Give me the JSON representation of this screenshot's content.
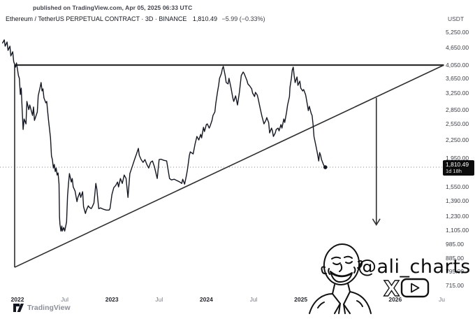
{
  "header": {
    "published_line": "published on TradingView.com, Apr 05, 2025 06:33 UTC",
    "symbol_line": "Ethereum / TetherUS PERPETUAL CONTRACT · 3D · BINANCE",
    "last_price": "1,810.49",
    "change": "−5.99 (−0.33%)"
  },
  "price_scale": {
    "unit": "USDT",
    "badge": {
      "price": "1,810.49",
      "countdown": "1d 18h"
    }
  },
  "watermark": {
    "handle": "@ali_charts",
    "icons": [
      "portrait-sketch",
      "x-logo",
      "youtube-logo"
    ]
  },
  "footer": {
    "logo_text": "TradingView"
  },
  "chart_data": {
    "type": "line",
    "title": "Ethereum / TetherUS PERPETUAL CONTRACT",
    "interval": "3D",
    "exchange": "BINANCE",
    "quote_currency": "USDT",
    "last_price": 1810.49,
    "change": -5.99,
    "change_pct": -0.33,
    "line_color": "#131722",
    "y_axis": {
      "scale": "log",
      "side": "right",
      "ticks": [
        {
          "v": 5250,
          "label": "5,250.00"
        },
        {
          "v": 4650,
          "label": "4,650.00"
        },
        {
          "v": 4050,
          "label": "4,050.00"
        },
        {
          "v": 3650,
          "label": "3,650.00"
        },
        {
          "v": 3250,
          "label": "3,250.00"
        },
        {
          "v": 2850,
          "label": "2,850.00"
        },
        {
          "v": 2550,
          "label": "2,550.00"
        },
        {
          "v": 2250,
          "label": "2,250.00"
        },
        {
          "v": 1950,
          "label": "1,950.00"
        },
        {
          "v": 1550,
          "label": "1,550.00"
        },
        {
          "v": 1390,
          "label": "1,390.00"
        },
        {
          "v": 1230,
          "label": "1,230.00"
        },
        {
          "v": 1105,
          "label": "1,105.00"
        },
        {
          "v": 985,
          "label": "985.00"
        },
        {
          "v": 885,
          "label": "885.00"
        },
        {
          "v": 795,
          "label": "795.00"
        },
        {
          "v": 715,
          "label": "715.00"
        }
      ]
    },
    "x_axis": {
      "ticks": [
        {
          "t": 2022.0,
          "label": "2022",
          "style": "year"
        },
        {
          "t": 2022.5,
          "label": "Jul",
          "style": "minor"
        },
        {
          "t": 2023.0,
          "label": "2023",
          "style": "year"
        },
        {
          "t": 2023.5,
          "label": "Jul",
          "style": "minor"
        },
        {
          "t": 2024.0,
          "label": "2024",
          "style": "year"
        },
        {
          "t": 2024.5,
          "label": "Jul",
          "style": "minor"
        },
        {
          "t": 2025.0,
          "label": "2025",
          "style": "year"
        },
        {
          "t": 2026.0,
          "label": "2026",
          "style": "year"
        },
        {
          "t": 2026.5,
          "label": "Jul",
          "style": "minor"
        }
      ]
    },
    "annotations": {
      "triangle": {
        "resistance_price": 4050,
        "start_t": 2021.97,
        "apex_t": 2026.515,
        "support_start_price": 823
      },
      "down_arrow": {
        "t": 2025.8,
        "from_price": 3130,
        "to_price": 1150
      },
      "current_price_line": 1810.49,
      "last_point_marker": [
        2025.26,
        1810.49
      ]
    },
    "series": [
      {
        "name": "ETHUSDT.P close",
        "points": [
          [
            2021.84,
            4805
          ],
          [
            2021.86,
            4939
          ],
          [
            2021.87,
            4700
          ],
          [
            2021.89,
            4858
          ],
          [
            2021.9,
            4547
          ],
          [
            2021.92,
            4700
          ],
          [
            2021.93,
            4351
          ],
          [
            2021.95,
            4498
          ],
          [
            2021.96,
            4163
          ],
          [
            2021.98,
            3984
          ],
          [
            2021.99,
            4118
          ],
          [
            2022.01,
            3728
          ],
          [
            2022.02,
            3647
          ],
          [
            2022.03,
            3212
          ],
          [
            2022.04,
            3376
          ],
          [
            2022.05,
            2829
          ],
          [
            2022.06,
            2438
          ],
          [
            2022.07,
            2648
          ],
          [
            2022.09,
            2547
          ],
          [
            2022.1,
            3040
          ],
          [
            2022.12,
            2850
          ],
          [
            2022.13,
            2957
          ],
          [
            2022.16,
            2722
          ],
          [
            2022.17,
            2909
          ],
          [
            2022.18,
            2619
          ],
          [
            2022.21,
            2798
          ],
          [
            2022.22,
            3177
          ],
          [
            2022.24,
            3395
          ],
          [
            2022.25,
            3528
          ],
          [
            2022.26,
            3302
          ],
          [
            2022.27,
            3357
          ],
          [
            2022.28,
            3125
          ],
          [
            2022.3,
            3007
          ],
          [
            2022.31,
            3040
          ],
          [
            2022.32,
            2798
          ],
          [
            2022.33,
            2605
          ],
          [
            2022.35,
            2281
          ],
          [
            2022.36,
            1977
          ],
          [
            2022.37,
            1923
          ],
          [
            2022.38,
            1799
          ],
          [
            2022.39,
            1850
          ],
          [
            2022.4,
            1750
          ],
          [
            2022.41,
            1799
          ],
          [
            2022.42,
            1703
          ],
          [
            2022.43,
            1731
          ],
          [
            2022.44,
            1585
          ],
          [
            2022.445,
            1223
          ],
          [
            2022.45,
            1157
          ],
          [
            2022.46,
            1095
          ],
          [
            2022.47,
            1139
          ],
          [
            2022.475,
            1095
          ],
          [
            2022.49,
            1126
          ],
          [
            2022.5,
            1095
          ],
          [
            2022.52,
            1176
          ],
          [
            2022.53,
            1443
          ],
          [
            2022.54,
            1585
          ],
          [
            2022.55,
            1722
          ],
          [
            2022.57,
            1611
          ],
          [
            2022.58,
            1656
          ],
          [
            2022.59,
            1550
          ],
          [
            2022.61,
            1500
          ],
          [
            2022.63,
            1381
          ],
          [
            2022.64,
            1427
          ],
          [
            2022.66,
            1483
          ],
          [
            2022.67,
            1427
          ],
          [
            2022.69,
            1492
          ],
          [
            2022.7,
            1328
          ],
          [
            2022.72,
            1257
          ],
          [
            2022.73,
            1292
          ],
          [
            2022.75,
            1336
          ],
          [
            2022.76,
            1321
          ],
          [
            2022.78,
            1307
          ],
          [
            2022.79,
            1321
          ],
          [
            2022.81,
            1366
          ],
          [
            2022.82,
            1475
          ],
          [
            2022.83,
            1594
          ],
          [
            2022.84,
            1525
          ],
          [
            2022.86,
            1307
          ],
          [
            2022.88,
            1314
          ],
          [
            2022.91,
            1300
          ],
          [
            2022.94,
            1292
          ],
          [
            2022.97,
            1292
          ],
          [
            2022.98,
            1307
          ],
          [
            2023.0,
            1459
          ],
          [
            2023.02,
            1542
          ],
          [
            2023.04,
            1567
          ],
          [
            2023.06,
            1611
          ],
          [
            2023.07,
            1550
          ],
          [
            2023.09,
            1656
          ],
          [
            2023.11,
            1594
          ],
          [
            2023.13,
            1703
          ],
          [
            2023.15,
            1656
          ],
          [
            2023.17,
            1427
          ],
          [
            2023.19,
            1722
          ],
          [
            2023.21,
            1799
          ],
          [
            2023.24,
            1923
          ],
          [
            2023.26,
            2010
          ],
          [
            2023.28,
            2100
          ],
          [
            2023.29,
            1988
          ],
          [
            2023.31,
            1923
          ],
          [
            2023.33,
            1881
          ],
          [
            2023.35,
            1923
          ],
          [
            2023.37,
            1850
          ],
          [
            2023.39,
            1799
          ],
          [
            2023.41,
            1881
          ],
          [
            2023.43,
            1902
          ],
          [
            2023.45,
            1820
          ],
          [
            2023.48,
            1656
          ],
          [
            2023.5,
            1923
          ],
          [
            2023.52,
            1928
          ],
          [
            2023.55,
            1912
          ],
          [
            2023.58,
            1902
          ],
          [
            2023.61,
            1656
          ],
          [
            2023.63,
            1638
          ],
          [
            2023.66,
            1647
          ],
          [
            2023.69,
            1629
          ],
          [
            2023.72,
            1611
          ],
          [
            2023.74,
            1594
          ],
          [
            2023.75,
            1647
          ],
          [
            2023.77,
            1585
          ],
          [
            2023.79,
            1703
          ],
          [
            2023.8,
            1780
          ],
          [
            2023.82,
            1988
          ],
          [
            2023.83,
            2043
          ],
          [
            2023.86,
            2010
          ],
          [
            2023.88,
            2171
          ],
          [
            2023.9,
            2307
          ],
          [
            2023.92,
            2244
          ],
          [
            2023.94,
            2345
          ],
          [
            2023.95,
            2281
          ],
          [
            2023.97,
            2479
          ],
          [
            2023.98,
            2398
          ],
          [
            2024.0,
            2533
          ],
          [
            2024.01,
            2547
          ],
          [
            2024.03,
            2465
          ],
          [
            2024.04,
            2506
          ],
          [
            2024.06,
            2619
          ],
          [
            2024.07,
            2722
          ],
          [
            2024.09,
            2798
          ],
          [
            2024.1,
            2990
          ],
          [
            2024.12,
            3302
          ],
          [
            2024.13,
            3451
          ],
          [
            2024.14,
            3647
          ],
          [
            2024.16,
            3791
          ],
          [
            2024.17,
            3940
          ],
          [
            2024.18,
            4005
          ],
          [
            2024.2,
            3728
          ],
          [
            2024.21,
            3528
          ],
          [
            2024.23,
            3490
          ],
          [
            2024.24,
            3647
          ],
          [
            2024.26,
            3395
          ],
          [
            2024.28,
            3125
          ],
          [
            2024.29,
            3040
          ],
          [
            2024.31,
            3177
          ],
          [
            2024.33,
            2957
          ],
          [
            2024.35,
            3266
          ],
          [
            2024.37,
            3728
          ],
          [
            2024.39,
            3833
          ],
          [
            2024.4,
            3791
          ],
          [
            2024.43,
            3587
          ],
          [
            2024.44,
            3490
          ],
          [
            2024.46,
            3432
          ],
          [
            2024.48,
            3357
          ],
          [
            2024.49,
            3248
          ],
          [
            2024.51,
            3160
          ],
          [
            2024.52,
            3266
          ],
          [
            2024.54,
            3195
          ],
          [
            2024.55,
            3091
          ],
          [
            2024.57,
            2877
          ],
          [
            2024.59,
            2692
          ],
          [
            2024.61,
            2547
          ],
          [
            2024.63,
            2619
          ],
          [
            2024.64,
            2677
          ],
          [
            2024.66,
            2576
          ],
          [
            2024.67,
            2372
          ],
          [
            2024.69,
            2465
          ],
          [
            2024.7,
            2411
          ],
          [
            2024.71,
            2307
          ],
          [
            2024.73,
            2372
          ],
          [
            2024.74,
            2438
          ],
          [
            2024.76,
            2465
          ],
          [
            2024.77,
            2411
          ],
          [
            2024.79,
            2533
          ],
          [
            2024.8,
            2465
          ],
          [
            2024.82,
            2648
          ],
          [
            2024.83,
            2576
          ],
          [
            2024.85,
            2798
          ],
          [
            2024.86,
            2957
          ],
          [
            2024.88,
            3160
          ],
          [
            2024.885,
            3395
          ],
          [
            2024.9,
            3647
          ],
          [
            2024.91,
            3897
          ],
          [
            2024.92,
            3984
          ],
          [
            2024.93,
            3728
          ],
          [
            2024.94,
            3528
          ],
          [
            2024.96,
            3688
          ],
          [
            2024.97,
            3451
          ],
          [
            2024.99,
            3567
          ],
          [
            2025.0,
            3376
          ],
          [
            2025.02,
            3302
          ],
          [
            2025.03,
            3339
          ],
          [
            2025.05,
            3212
          ],
          [
            2025.055,
            3160
          ],
          [
            2025.07,
            2957
          ],
          [
            2025.08,
            2829
          ],
          [
            2025.09,
            2925
          ],
          [
            2025.11,
            2767
          ],
          [
            2025.12,
            2722
          ],
          [
            2025.13,
            2533
          ],
          [
            2025.14,
            2307
          ],
          [
            2025.16,
            2147
          ],
          [
            2025.17,
            2066
          ],
          [
            2025.18,
            1988
          ],
          [
            2025.19,
            1902
          ],
          [
            2025.2,
            2032
          ],
          [
            2025.21,
            1988
          ],
          [
            2025.22,
            1923
          ],
          [
            2025.24,
            1850
          ],
          [
            2025.25,
            1820
          ],
          [
            2025.26,
            1810.49
          ]
        ]
      }
    ]
  }
}
